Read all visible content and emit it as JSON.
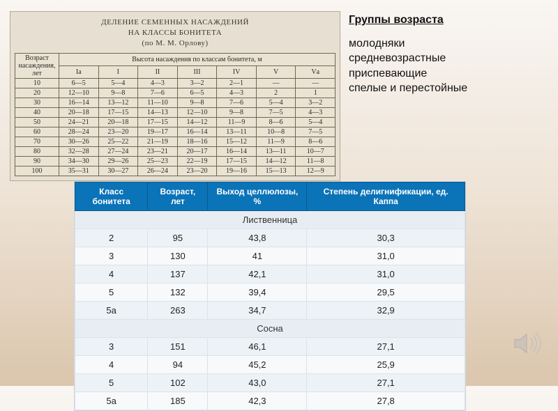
{
  "scan": {
    "title_lines": [
      "ДЕЛЕНИЕ СЕМЕННЫХ НАСАЖДЕНИЙ",
      "НА КЛАССЫ БОНИТЕТА",
      "(по М. М. Орлову)"
    ],
    "header_age": "Возраст насаждения, лет",
    "header_group": "Высота насаждения по классам бонитета, м",
    "classes": [
      "Iа",
      "I",
      "II",
      "III",
      "IV",
      "V",
      "Vа"
    ],
    "rows": [
      {
        "age": "10",
        "v": [
          "6—5",
          "5—4",
          "4—3",
          "3—2",
          "2—1",
          "—",
          "—"
        ]
      },
      {
        "age": "20",
        "v": [
          "12—10",
          "9—8",
          "7—6",
          "6—5",
          "4—3",
          "2",
          "1"
        ]
      },
      {
        "age": "30",
        "v": [
          "16—14",
          "13—12",
          "11—10",
          "9—8",
          "7—6",
          "5—4",
          "3—2"
        ]
      },
      {
        "age": "40",
        "v": [
          "20—18",
          "17—15",
          "14—13",
          "12—10",
          "9—8",
          "7—5",
          "4—3"
        ]
      },
      {
        "age": "50",
        "v": [
          "24—21",
          "20—18",
          "17—15",
          "14—12",
          "11—9",
          "8—6",
          "5—4"
        ]
      },
      {
        "age": "60",
        "v": [
          "28—24",
          "23—20",
          "19—17",
          "16—14",
          "13—11",
          "10—8",
          "7—5"
        ]
      },
      {
        "age": "70",
        "v": [
          "30—26",
          "25—22",
          "21—19",
          "18—16",
          "15—12",
          "11—9",
          "8—6"
        ]
      },
      {
        "age": "80",
        "v": [
          "32—28",
          "27—24",
          "23—21",
          "20—17",
          "16—14",
          "13—11",
          "10—7"
        ]
      },
      {
        "age": "90",
        "v": [
          "34—30",
          "29—26",
          "25—23",
          "22—19",
          "17—15",
          "14—12",
          "11—8"
        ]
      },
      {
        "age": "100",
        "v": [
          "35—31",
          "30—27",
          "26—24",
          "23—20",
          "19—16",
          "15—13",
          "12—9"
        ]
      }
    ]
  },
  "side": {
    "heading": "Группы возраста",
    "lines": [
      "молодняки",
      "средневозрастные",
      "приспевающие",
      "спелые  и перестойные"
    ]
  },
  "blue": {
    "headers": [
      "Класс бонитета",
      "Возраст, лет",
      "Выход целлюлозы, %",
      "Степень делигнификации, ед. Каппа"
    ],
    "sections": [
      {
        "name": "Лиственница",
        "rows": [
          [
            "2",
            "95",
            "43,8",
            "30,3"
          ],
          [
            "3",
            "130",
            "41",
            "31,0"
          ],
          [
            "4",
            "137",
            "42,1",
            "31,0"
          ],
          [
            "5",
            "132",
            "39,4",
            "29,5"
          ],
          [
            "5а",
            "263",
            "34,7",
            "32,9"
          ]
        ]
      },
      {
        "name": "Сосна",
        "rows": [
          [
            "3",
            "151",
            "46,1",
            "27,1"
          ],
          [
            "4",
            "94",
            "45,2",
            "25,9"
          ],
          [
            "5",
            "102",
            "43,0",
            "27,1"
          ],
          [
            "5а",
            "185",
            "42,3",
            "27,8"
          ]
        ]
      }
    ]
  },
  "icons": {
    "speaker": "speaker-icon"
  }
}
